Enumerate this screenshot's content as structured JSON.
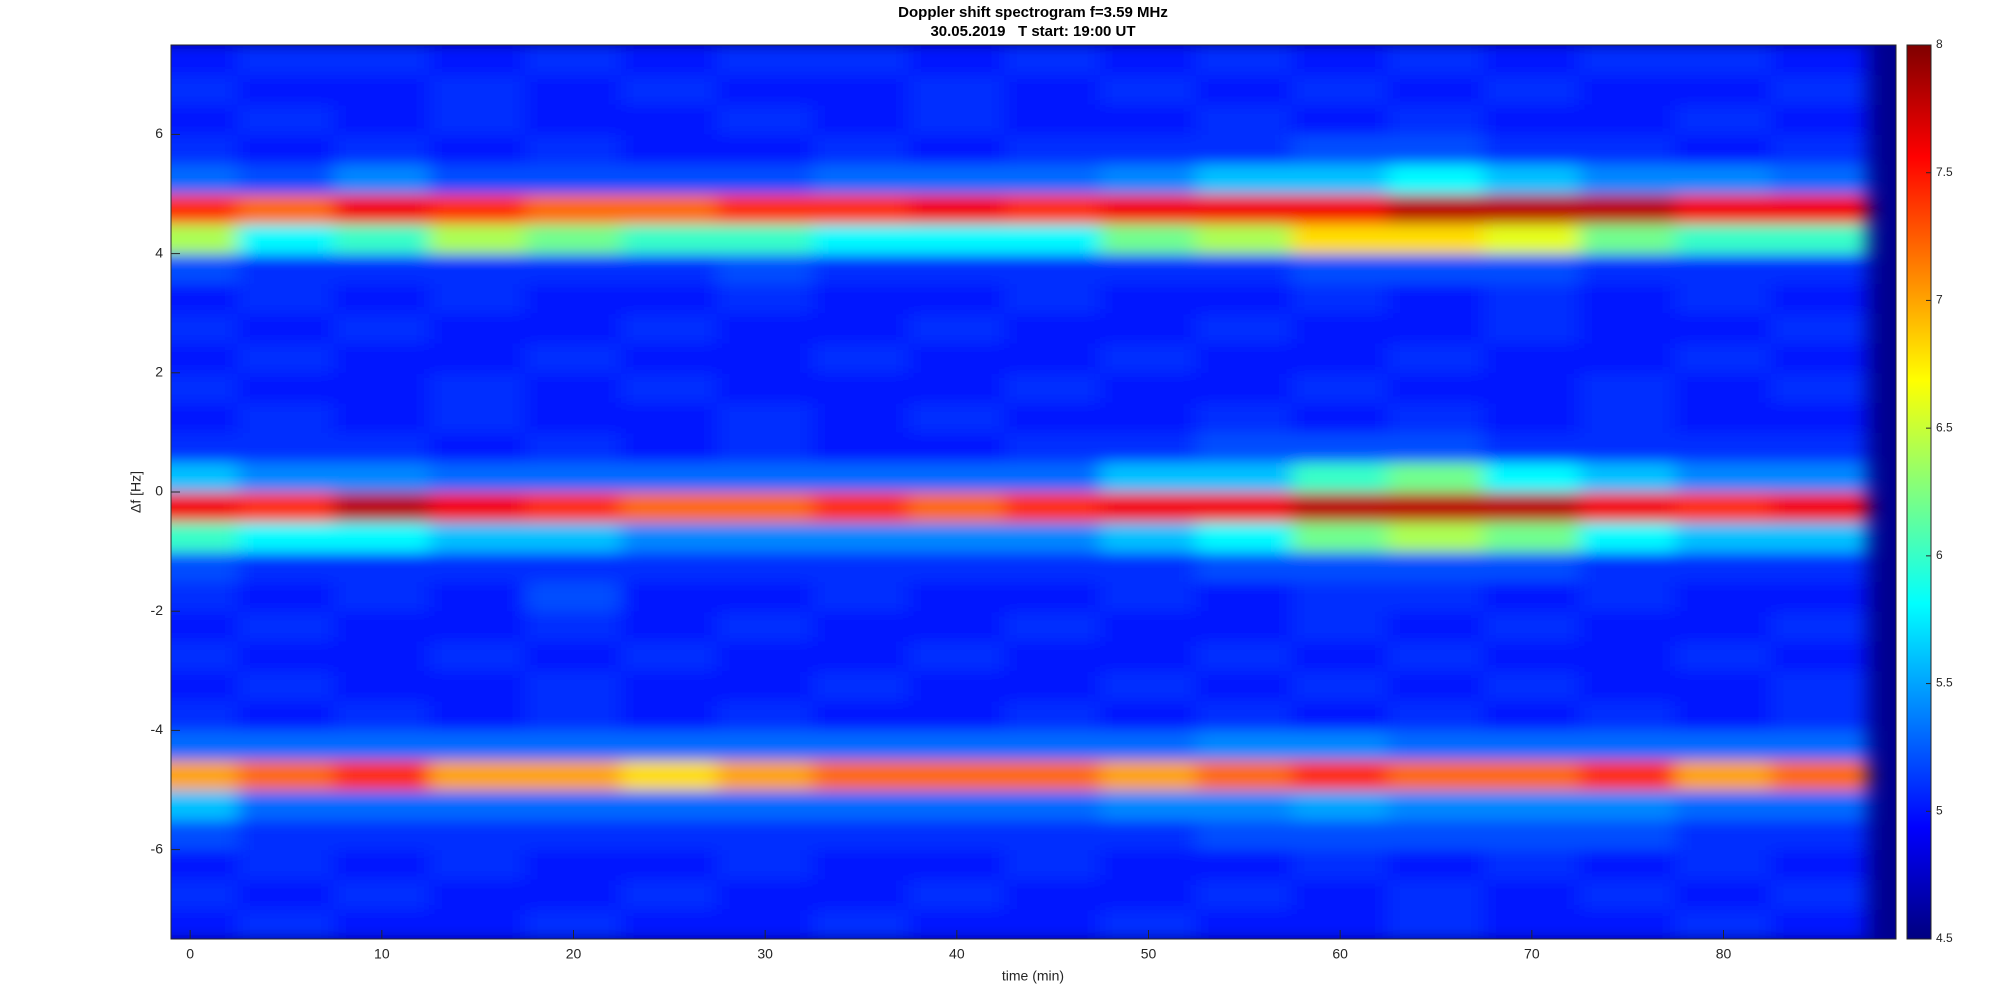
{
  "chart_data": {
    "type": "heatmap",
    "title": "Doppler shift spectrogram f=3.59 MHz",
    "subtitle": "30.05.2019   T start: 19:00 UT",
    "x_label": "time (min)",
    "y_label": "Δf [Hz]",
    "colormap": "jet",
    "x": [
      0,
      5,
      10,
      15,
      20,
      25,
      30,
      35,
      40,
      45,
      50,
      55,
      60,
      65,
      70,
      75,
      80,
      85
    ],
    "y": [
      -7.25,
      -6.75,
      -6.25,
      -5.75,
      -5.25,
      -4.75,
      -4.25,
      -3.75,
      -3.25,
      -2.75,
      -2.25,
      -1.75,
      -1.25,
      -0.75,
      -0.25,
      0.25,
      0.75,
      1.25,
      1.75,
      2.25,
      2.75,
      3.25,
      3.75,
      4.25,
      4.75,
      5.25,
      5.75,
      6.25,
      6.75,
      7.25
    ],
    "z": [
      [
        5.0,
        5.1,
        5.0,
        5.0,
        5.1,
        5.0,
        5.0,
        5.1,
        5.0,
        5.0,
        5.1,
        5.0,
        5.0,
        5.1,
        5.0,
        5.0,
        5.1,
        5.0
      ],
      [
        5.1,
        5.0,
        5.1,
        5.0,
        5.0,
        5.1,
        5.0,
        5.0,
        5.1,
        5.0,
        5.0,
        5.1,
        5.0,
        5.1,
        5.0,
        5.1,
        5.0,
        5.1
      ],
      [
        5.0,
        5.1,
        5.0,
        5.1,
        5.0,
        5.0,
        5.1,
        5.0,
        5.0,
        5.1,
        5.0,
        5.0,
        5.1,
        5.0,
        5.1,
        5.0,
        5.1,
        5.0
      ],
      [
        5.2,
        5.1,
        5.1,
        5.1,
        5.1,
        5.1,
        5.1,
        5.1,
        5.1,
        5.1,
        5.1,
        5.2,
        5.2,
        5.2,
        5.2,
        5.2,
        5.1,
        5.1
      ],
      [
        5.6,
        5.3,
        5.3,
        5.3,
        5.3,
        5.3,
        5.3,
        5.3,
        5.3,
        5.3,
        5.4,
        5.4,
        5.5,
        5.4,
        5.4,
        5.4,
        5.3,
        5.3
      ],
      [
        7.0,
        7.2,
        7.4,
        7.0,
        7.0,
        6.8,
        7.0,
        7.2,
        7.2,
        7.2,
        7.0,
        7.2,
        7.4,
        7.2,
        7.2,
        7.4,
        7.0,
        7.2
      ],
      [
        5.3,
        5.3,
        5.3,
        5.3,
        5.3,
        5.3,
        5.3,
        5.3,
        5.3,
        5.3,
        5.3,
        5.4,
        5.4,
        5.3,
        5.3,
        5.3,
        5.3,
        5.3
      ],
      [
        5.1,
        5.0,
        5.1,
        5.0,
        5.1,
        5.0,
        5.1,
        5.0,
        5.0,
        5.1,
        5.0,
        5.1,
        5.0,
        5.1,
        5.0,
        5.1,
        5.0,
        5.1
      ],
      [
        5.0,
        5.1,
        5.0,
        5.0,
        5.1,
        5.0,
        5.0,
        5.1,
        5.0,
        5.0,
        5.1,
        5.0,
        5.1,
        5.0,
        5.1,
        5.0,
        5.0,
        5.1
      ],
      [
        5.1,
        5.0,
        5.0,
        5.1,
        5.0,
        5.1,
        5.0,
        5.0,
        5.1,
        5.0,
        5.0,
        5.1,
        5.0,
        5.1,
        5.0,
        5.0,
        5.1,
        5.0
      ],
      [
        5.0,
        5.1,
        5.0,
        5.0,
        5.1,
        5.0,
        5.1,
        5.0,
        5.0,
        5.1,
        5.0,
        5.0,
        5.1,
        5.0,
        5.1,
        5.0,
        5.0,
        5.1
      ],
      [
        5.1,
        5.0,
        5.1,
        5.0,
        5.2,
        5.0,
        5.0,
        5.1,
        5.0,
        5.0,
        5.1,
        5.0,
        5.1,
        5.1,
        5.0,
        5.1,
        5.0,
        5.0
      ],
      [
        5.2,
        5.1,
        5.1,
        5.1,
        5.1,
        5.1,
        5.1,
        5.1,
        5.1,
        5.1,
        5.1,
        5.2,
        5.2,
        5.2,
        5.2,
        5.1,
        5.1,
        5.1
      ],
      [
        6.0,
        5.8,
        5.8,
        5.6,
        5.6,
        5.4,
        5.4,
        5.4,
        5.4,
        5.4,
        5.6,
        5.8,
        6.2,
        6.4,
        6.2,
        5.8,
        5.6,
        5.6
      ],
      [
        7.6,
        7.4,
        7.8,
        7.6,
        7.4,
        7.2,
        7.2,
        7.4,
        7.2,
        7.4,
        7.6,
        7.6,
        7.8,
        7.8,
        7.8,
        7.6,
        7.4,
        7.6
      ],
      [
        5.6,
        5.4,
        5.4,
        5.3,
        5.3,
        5.3,
        5.3,
        5.3,
        5.3,
        5.3,
        5.6,
        5.6,
        6.0,
        6.2,
        5.8,
        5.6,
        5.4,
        5.4
      ],
      [
        5.1,
        5.1,
        5.1,
        5.0,
        5.1,
        5.0,
        5.1,
        5.0,
        5.0,
        5.1,
        5.1,
        5.2,
        5.2,
        5.2,
        5.1,
        5.1,
        5.1,
        5.1
      ],
      [
        5.0,
        5.1,
        5.0,
        5.1,
        5.0,
        5.0,
        5.1,
        5.0,
        5.1,
        5.0,
        5.0,
        5.1,
        5.0,
        5.1,
        5.0,
        5.1,
        5.0,
        5.0
      ],
      [
        5.1,
        5.0,
        5.0,
        5.1,
        5.0,
        5.1,
        5.0,
        5.0,
        5.0,
        5.1,
        5.0,
        5.0,
        5.1,
        5.0,
        5.0,
        5.1,
        5.0,
        5.1
      ],
      [
        5.0,
        5.1,
        5.0,
        5.0,
        5.1,
        5.0,
        5.0,
        5.1,
        5.0,
        5.0,
        5.1,
        5.0,
        5.0,
        5.1,
        5.0,
        5.0,
        5.1,
        5.0
      ],
      [
        5.1,
        5.0,
        5.1,
        5.0,
        5.0,
        5.1,
        5.0,
        5.0,
        5.1,
        5.0,
        5.0,
        5.1,
        5.0,
        5.0,
        5.1,
        5.0,
        5.0,
        5.1
      ],
      [
        5.0,
        5.1,
        5.0,
        5.1,
        5.0,
        5.0,
        5.1,
        5.0,
        5.0,
        5.1,
        5.0,
        5.0,
        5.1,
        5.0,
        5.1,
        5.0,
        5.1,
        5.0
      ],
      [
        5.2,
        5.1,
        5.1,
        5.1,
        5.1,
        5.1,
        5.2,
        5.1,
        5.1,
        5.1,
        5.1,
        5.1,
        5.2,
        5.2,
        5.2,
        5.1,
        5.1,
        5.1
      ],
      [
        6.4,
        5.8,
        6.0,
        6.4,
        6.2,
        6.0,
        6.0,
        5.8,
        5.8,
        5.8,
        6.2,
        6.4,
        6.8,
        6.8,
        6.6,
        6.2,
        6.0,
        6.0
      ],
      [
        7.4,
        7.2,
        7.6,
        7.4,
        7.2,
        7.2,
        7.4,
        7.4,
        7.6,
        7.4,
        7.6,
        7.6,
        7.6,
        7.8,
        7.8,
        7.8,
        7.6,
        7.6
      ],
      [
        5.3,
        5.2,
        5.4,
        5.2,
        5.2,
        5.2,
        5.2,
        5.3,
        5.3,
        5.3,
        5.4,
        5.6,
        5.6,
        5.8,
        5.6,
        5.4,
        5.4,
        5.3
      ],
      [
        5.1,
        5.0,
        5.1,
        5.0,
        5.1,
        5.0,
        5.0,
        5.1,
        5.0,
        5.1,
        5.1,
        5.1,
        5.2,
        5.2,
        5.1,
        5.1,
        5.0,
        5.1
      ],
      [
        5.0,
        5.1,
        5.0,
        5.1,
        5.0,
        5.0,
        5.1,
        5.0,
        5.1,
        5.0,
        5.0,
        5.1,
        5.0,
        5.1,
        5.0,
        5.0,
        5.1,
        5.0
      ],
      [
        5.1,
        5.0,
        5.0,
        5.1,
        5.0,
        5.1,
        5.0,
        5.0,
        5.1,
        5.0,
        5.1,
        5.0,
        5.1,
        5.0,
        5.1,
        5.0,
        5.0,
        5.1
      ],
      [
        5.0,
        5.1,
        5.1,
        5.0,
        5.1,
        5.0,
        5.1,
        5.1,
        5.0,
        5.1,
        5.0,
        5.1,
        5.0,
        5.1,
        5.0,
        5.1,
        5.1,
        5.0
      ]
    ],
    "xlim": [
      -1,
      89
    ],
    "xticks": [
      0,
      10,
      20,
      30,
      40,
      50,
      60,
      70,
      80
    ],
    "ylim": [
      -7.5,
      7.5
    ],
    "yticks": [
      -6,
      -4,
      -2,
      0,
      2,
      4,
      6
    ],
    "clim": [
      4.5,
      8
    ],
    "cticks": [
      4.5,
      5,
      5.5,
      6,
      6.5,
      7,
      7.5,
      8
    ]
  }
}
